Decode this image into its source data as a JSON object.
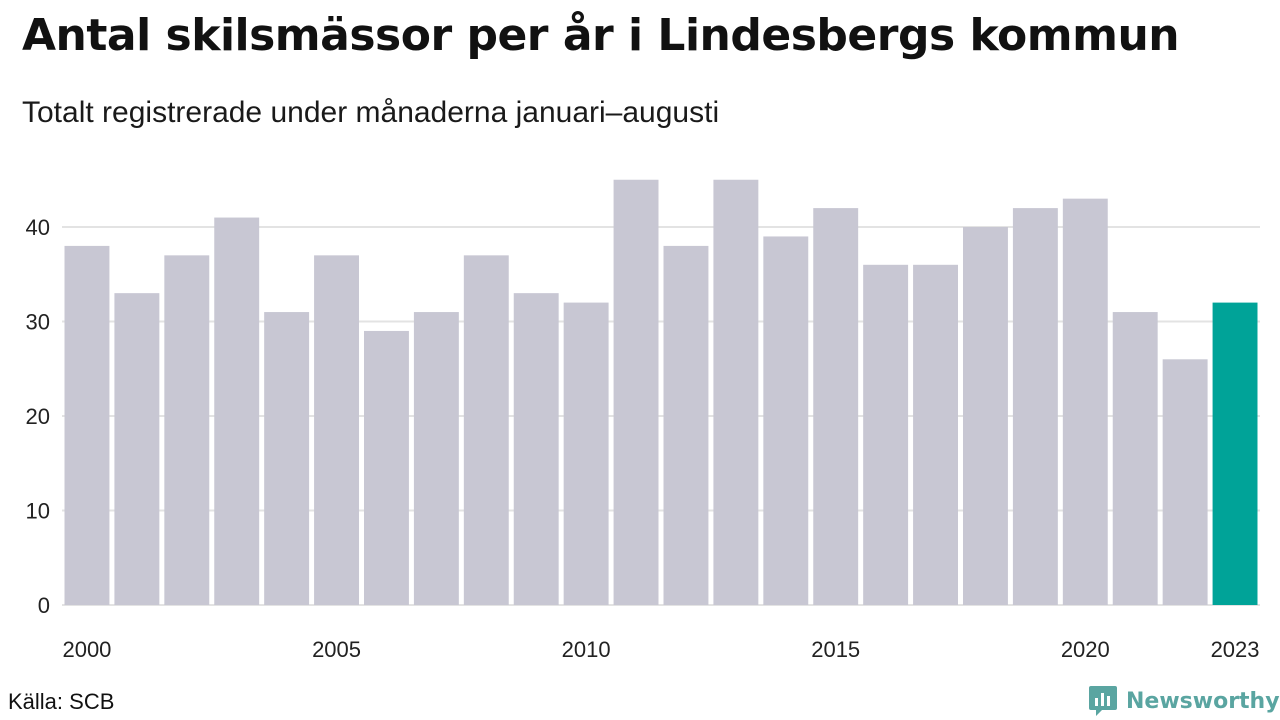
{
  "header": {
    "title": "Antal skilsmässor per år i Lindesbergs kommun",
    "subtitle": "Totalt registrerade under månaderna januari–augusti"
  },
  "footer": {
    "source": "Källa: SCB",
    "brand_name": "Newsworthy",
    "brand_icon": "newsworthy-logo-icon"
  },
  "colors": {
    "bar": "#c8c7d3",
    "highlight": "#00a398",
    "grid": "#e3e3e3",
    "brand": "#5aa5a1"
  },
  "chart_data": {
    "type": "bar",
    "title": "Antal skilsmässor per år i Lindesbergs kommun",
    "subtitle": "Totalt registrerade under månaderna januari–augusti",
    "categories": [
      2000,
      2001,
      2002,
      2003,
      2004,
      2005,
      2006,
      2007,
      2008,
      2009,
      2010,
      2011,
      2012,
      2013,
      2014,
      2015,
      2016,
      2017,
      2018,
      2019,
      2020,
      2021,
      2022,
      2023
    ],
    "values": [
      38,
      33,
      37,
      41,
      31,
      37,
      29,
      31,
      37,
      33,
      32,
      45,
      38,
      45,
      39,
      42,
      36,
      36,
      40,
      42,
      43,
      31,
      26,
      32
    ],
    "highlight": 2023,
    "x_tick_labels": [
      "2000",
      "2005",
      "2010",
      "2015",
      "2020",
      "2023"
    ],
    "y_ticks": [
      0,
      10,
      20,
      30,
      40
    ],
    "ylim": [
      0,
      45
    ],
    "xlabel": "",
    "ylabel": "",
    "grid": "horizontal"
  }
}
